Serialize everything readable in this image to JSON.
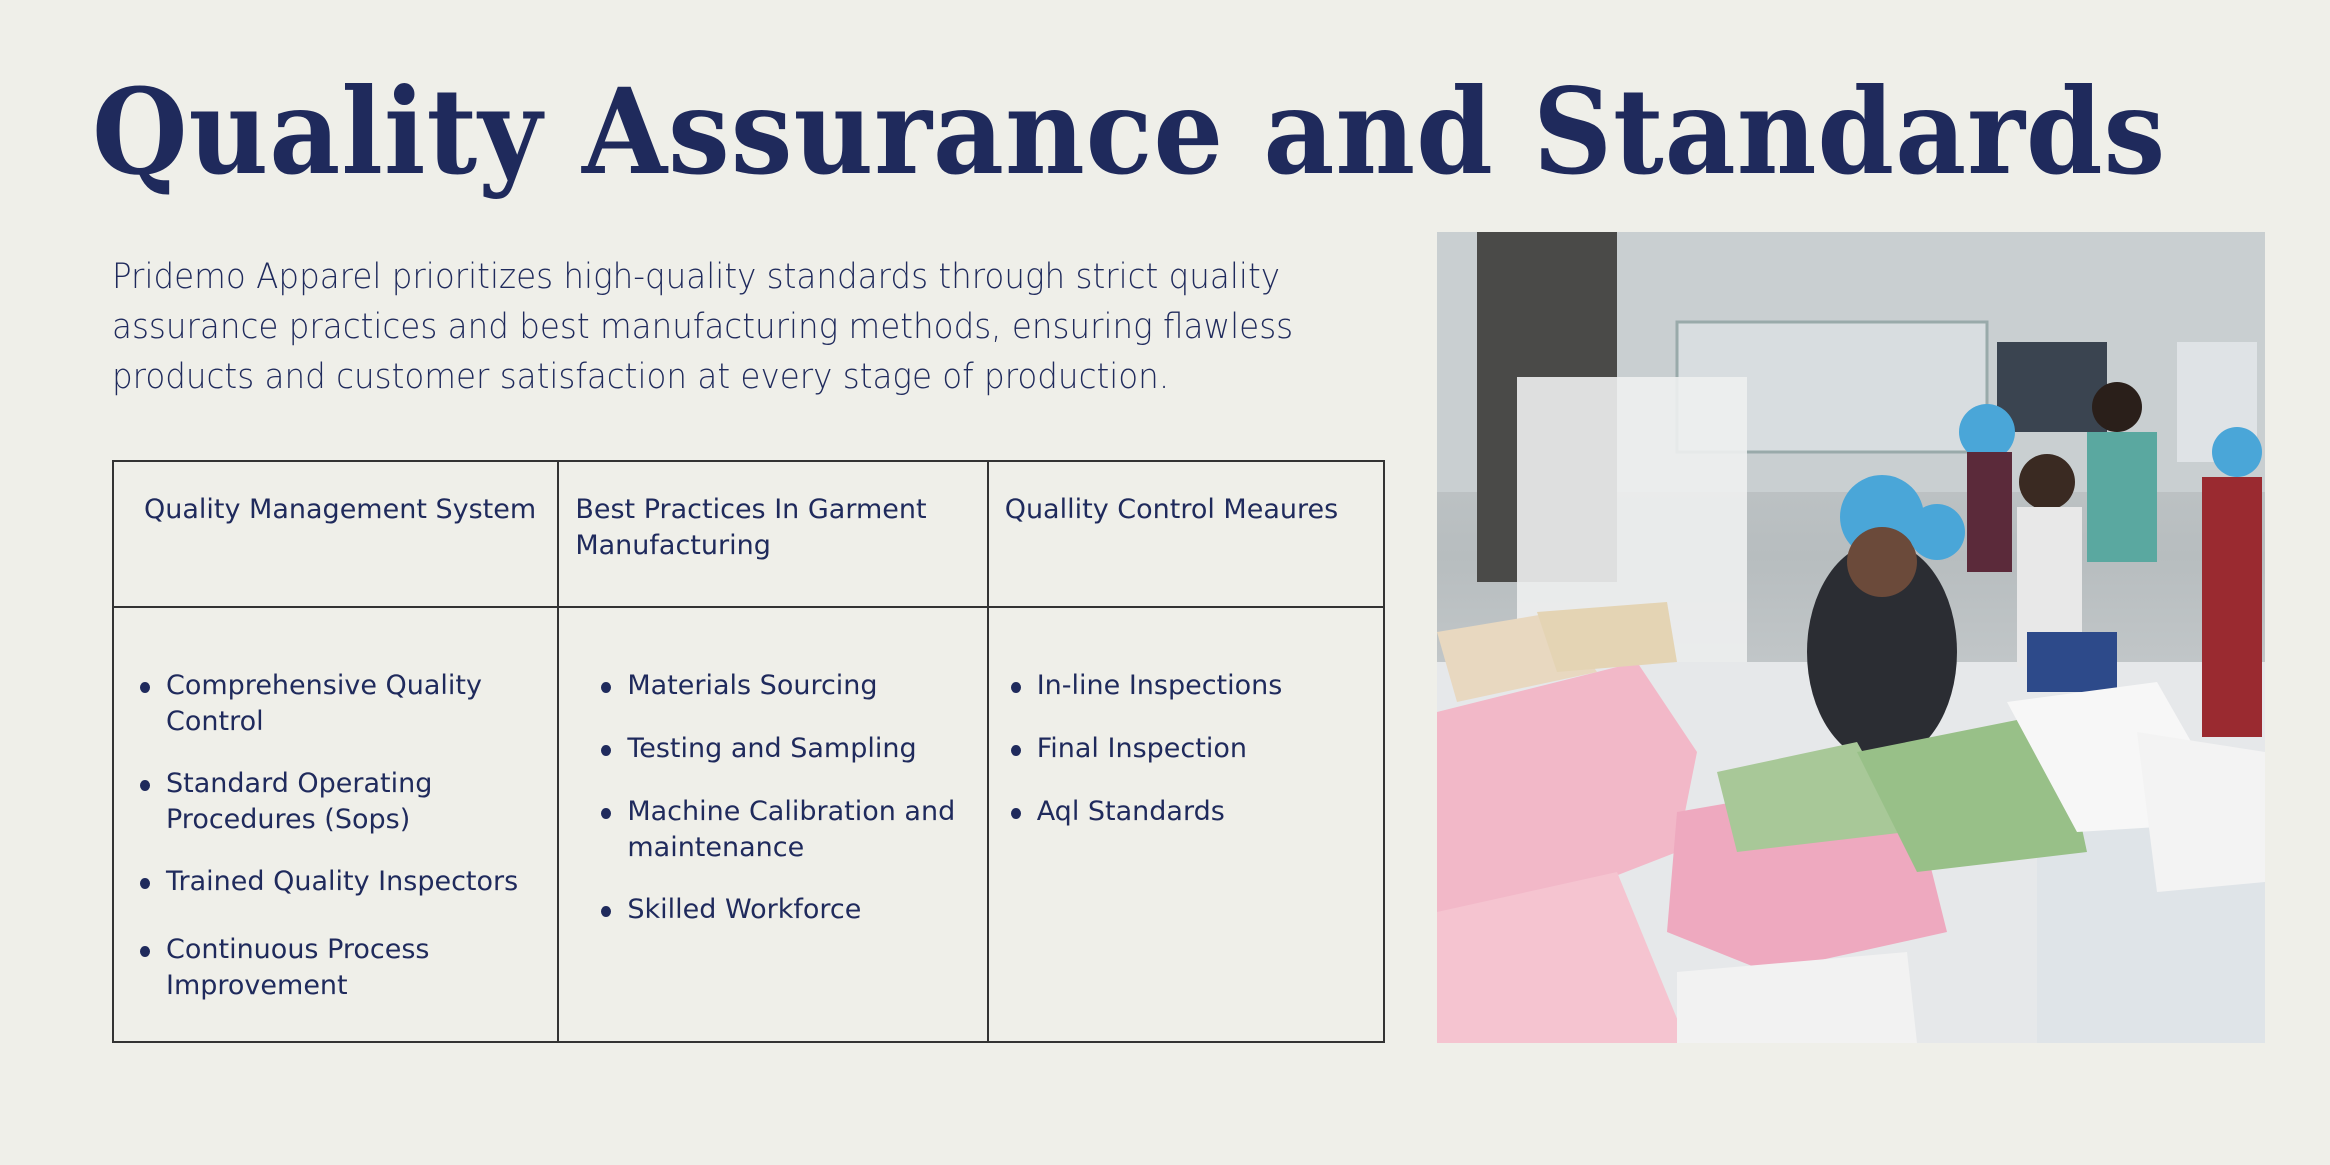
{
  "title": "Quality Assurance and Standards",
  "intro": "Pridemo Apparel prioritizes high-quality standards through strict quality assurance practices and best manufacturing methods, ensuring flawless products and customer satisfaction at every stage of production.",
  "colors": {
    "background": "#efefe9",
    "text": "#1f2a5c",
    "border": "#333333"
  },
  "table": {
    "headers": [
      "Quality Management System",
      "Best Practices In Garment Manufacturing",
      "Quallity Control Meaures"
    ],
    "columns": [
      [
        "Comprehensive Quality Control",
        "Standard Operating Procedures (Sops)",
        "Trained Quality Inspectors",
        "Continuous Process Improvement"
      ],
      [
        "Materials Sourcing",
        "Testing and Sampling",
        "Machine Calibration and maintenance",
        "Skilled Workforce"
      ],
      [
        "In-line Inspections",
        "Final Inspection",
        "Aql Standards"
      ]
    ]
  },
  "photo": {
    "subject": "garment-factory-workers-photo"
  }
}
